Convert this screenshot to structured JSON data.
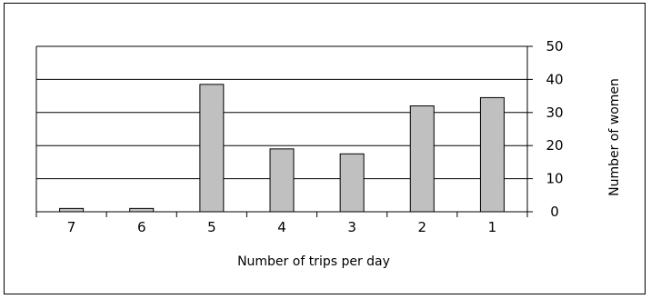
{
  "chart_data": {
    "type": "bar",
    "categories": [
      "7",
      "6",
      "5",
      "4",
      "3",
      "2",
      "1"
    ],
    "values": [
      1,
      1,
      38.5,
      19,
      17.5,
      32,
      34.5
    ],
    "title": "",
    "xlabel": "Number of trips per day",
    "ylabel": "Number of women",
    "ylim": [
      0,
      50
    ],
    "yticks": [
      "0",
      "10",
      "20",
      "30",
      "40",
      "50"
    ],
    "y_axis_position": "right",
    "grid": true,
    "colors": {
      "bar_fill": "#c0c0c0",
      "bar_stroke": "#000000",
      "grid": "#000000"
    }
  }
}
